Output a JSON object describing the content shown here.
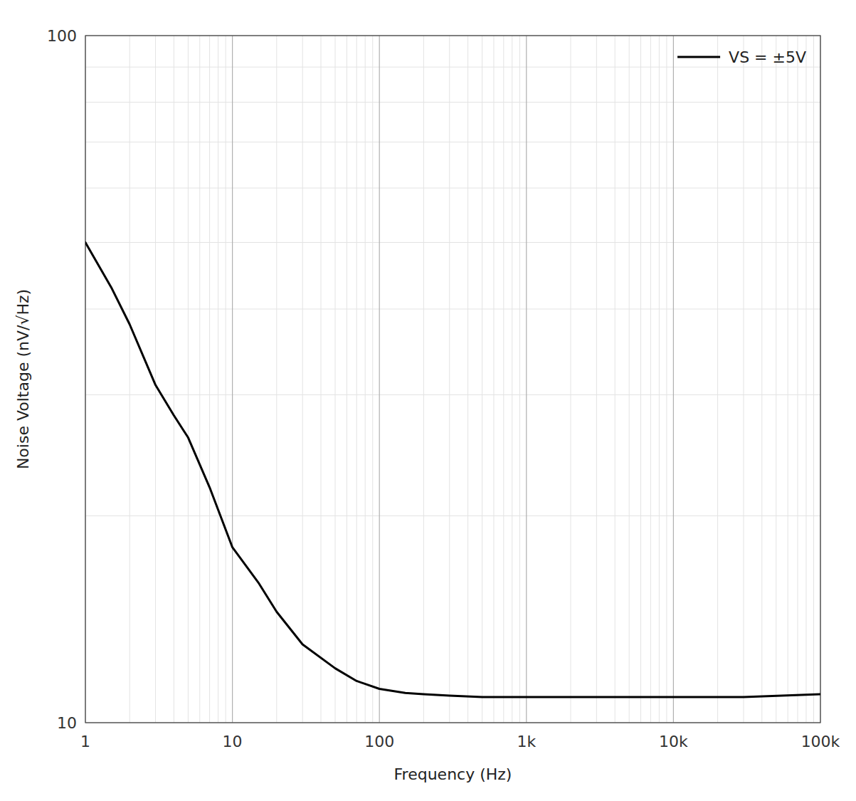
{
  "chart_data": {
    "type": "line",
    "xlabel": "Frequency (Hz)",
    "ylabel": "Noise Voltage (nV/√Hz)",
    "log": true,
    "grid": true,
    "legend": "upper right",
    "xlim": [
      1,
      100000
    ],
    "ylim": [
      10,
      100
    ],
    "xticks": [
      1,
      10,
      100,
      {
        "value": 1000,
        "label": "1k"
      },
      {
        "value": 10000,
        "label": "10k"
      },
      {
        "value": 100000,
        "label": "100k"
      }
    ],
    "yticks": [
      10,
      100
    ],
    "x": [
      1,
      1.5,
      2,
      3,
      4,
      5,
      7,
      10,
      15,
      20,
      30,
      50,
      70,
      100,
      150,
      200,
      300,
      500,
      700,
      1000,
      2000,
      5000,
      10000,
      30000,
      100000
    ],
    "series": [
      {
        "name": "VS = ±5V",
        "color": "#000000",
        "values": [
          50,
          43,
          38,
          31,
          28,
          26,
          22,
          18,
          16,
          14.5,
          13,
          12,
          11.5,
          11.2,
          11.05,
          11.0,
          10.95,
          10.9,
          10.9,
          10.9,
          10.9,
          10.9,
          10.9,
          10.9,
          11.0
        ]
      }
    ]
  }
}
